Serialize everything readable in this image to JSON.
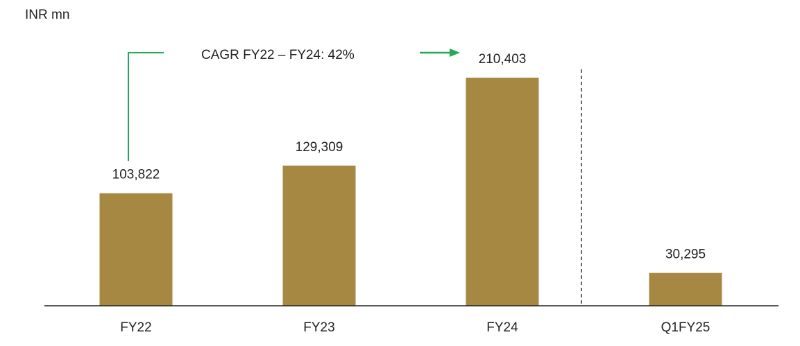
{
  "chart_data": {
    "type": "bar",
    "unit_label": "INR mn",
    "annotation": "CAGR FY22 – FY24: 42%",
    "categories": [
      "FY22",
      "FY23",
      "FY24",
      "Q1FY25"
    ],
    "values": [
      103822,
      129309,
      210403,
      30295
    ],
    "value_labels": [
      "103,822",
      "129,309",
      "210,403",
      "30,295"
    ],
    "color": "#a68843"
  }
}
